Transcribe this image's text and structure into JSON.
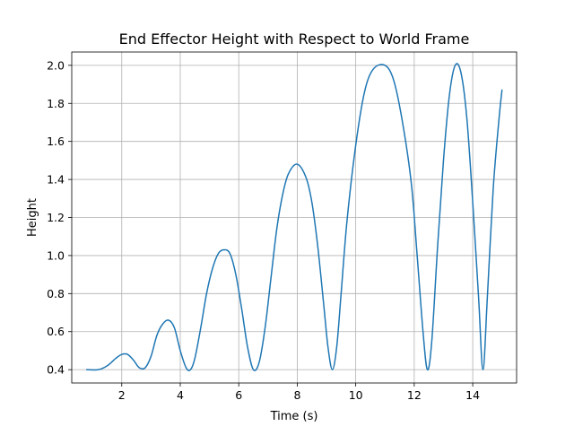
{
  "chart_data": {
    "type": "line",
    "title": "End Effector Height with Respect to World Frame",
    "xlabel": "Time (s)",
    "ylabel": "Height",
    "xlim": [
      0.29,
      15.5
    ],
    "ylim": [
      0.33,
      2.07
    ],
    "xticks": [
      2,
      4,
      6,
      8,
      10,
      12,
      14
    ],
    "yticks": [
      0.4,
      0.6,
      0.8,
      1.0,
      1.2,
      1.4,
      1.6,
      1.8,
      2.0
    ],
    "xtick_labels": [
      "2",
      "4",
      "6",
      "8",
      "10",
      "12",
      "14"
    ],
    "ytick_labels": [
      "0.4",
      "0.6",
      "0.8",
      "1.0",
      "1.2",
      "1.4",
      "1.6",
      "1.8",
      "2.0"
    ],
    "grid": true,
    "series": [
      {
        "color": "#1f77b4",
        "x": [
          0.8,
          1.2,
          1.5,
          1.8,
          2.0,
          2.2,
          2.4,
          2.6,
          2.8,
          3.0,
          3.2,
          3.4,
          3.6,
          3.8,
          4.0,
          4.2,
          4.35,
          4.5,
          4.7,
          4.9,
          5.1,
          5.3,
          5.5,
          5.7,
          5.9,
          6.1,
          6.3,
          6.5,
          6.7,
          6.9,
          7.1,
          7.3,
          7.5,
          7.7,
          8.0,
          8.3,
          8.5,
          8.7,
          8.9,
          9.05,
          9.2,
          9.35,
          9.5,
          9.7,
          10.0,
          10.3,
          10.6,
          11.0,
          11.3,
          11.6,
          11.9,
          12.1,
          12.3,
          12.45,
          12.6,
          12.8,
          13.0,
          13.2,
          13.4,
          13.6,
          13.8,
          14.0,
          14.2,
          14.35,
          14.5,
          14.7,
          14.9,
          15.0
        ],
        "y": [
          0.4,
          0.4,
          0.42,
          0.46,
          0.48,
          0.48,
          0.45,
          0.41,
          0.41,
          0.47,
          0.58,
          0.64,
          0.66,
          0.62,
          0.5,
          0.41,
          0.4,
          0.46,
          0.62,
          0.8,
          0.93,
          1.01,
          1.03,
          1.01,
          0.9,
          0.72,
          0.52,
          0.4,
          0.44,
          0.62,
          0.88,
          1.14,
          1.32,
          1.43,
          1.48,
          1.41,
          1.28,
          1.05,
          0.75,
          0.52,
          0.4,
          0.52,
          0.8,
          1.18,
          1.58,
          1.86,
          1.98,
          2.0,
          1.92,
          1.7,
          1.38,
          1.0,
          0.6,
          0.4,
          0.55,
          1.05,
          1.5,
          1.84,
          2.0,
          1.96,
          1.72,
          1.28,
          0.78,
          0.4,
          0.78,
          1.35,
          1.72,
          1.87
        ]
      }
    ]
  }
}
